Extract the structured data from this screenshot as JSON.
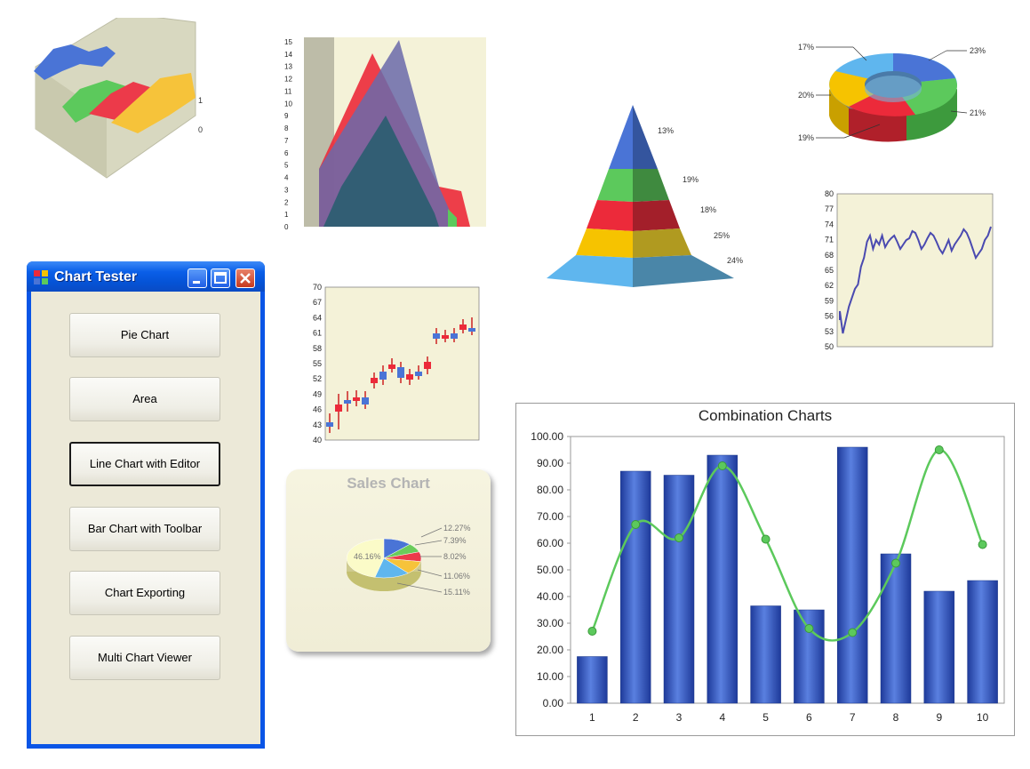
{
  "window": {
    "title": "Chart Tester",
    "buttons": [
      "Pie Chart",
      "Area",
      "Line Chart with Editor",
      "Bar Chart with Toolbar",
      "Chart Exporting",
      "Multi Chart Viewer"
    ],
    "focused_button": "Line Chart with Editor"
  },
  "thumbnails": {
    "surface_axis_labels": [
      "1",
      "0"
    ],
    "area_y_ticks": [
      "15",
      "14",
      "13",
      "12",
      "11",
      "10",
      "9",
      "8",
      "7",
      "6",
      "5",
      "4",
      "3",
      "2",
      "1",
      "0"
    ],
    "pyramid_labels": [
      "13%",
      "19%",
      "18%",
      "25%",
      "24%"
    ],
    "donut_labels": [
      "17%",
      "23%",
      "20%",
      "21%",
      "19%"
    ],
    "stock_y_ticks": [
      "80",
      "77",
      "74",
      "71",
      "68",
      "65",
      "62",
      "59",
      "56",
      "53",
      "50"
    ],
    "candle_y_ticks": [
      "70",
      "67",
      "64",
      "61",
      "58",
      "55",
      "52",
      "49",
      "46",
      "43",
      "40"
    ]
  },
  "sales_chart": {
    "title": "Sales Chart",
    "labels": [
      "46.16%",
      "12.27%",
      "7.39%",
      "8.02%",
      "11.06%",
      "15.11%"
    ],
    "values": [
      46.16,
      12.27,
      7.39,
      8.02,
      11.06,
      15.11
    ],
    "colors": [
      "#fbfbc8",
      "#4a74d6",
      "#6acb5a",
      "#ec3a4a",
      "#f6c33a",
      "#5fb6ee"
    ]
  },
  "chart_data": {
    "type": "bar",
    "title": "Combination Charts",
    "categories": [
      "1",
      "2",
      "3",
      "4",
      "5",
      "6",
      "7",
      "8",
      "9",
      "10"
    ],
    "series": [
      {
        "type": "bar",
        "values": [
          17.5,
          87.0,
          85.5,
          93.0,
          36.5,
          35.0,
          96.0,
          56.0,
          42.0,
          46.0
        ]
      },
      {
        "type": "spline",
        "values": [
          27.0,
          67.0,
          62.0,
          89.0,
          61.5,
          28.0,
          26.5,
          52.5,
          95.0,
          59.5
        ]
      }
    ],
    "ylim": [
      0,
      100
    ],
    "y_ticks": [
      "0.00",
      "10.00",
      "20.00",
      "30.00",
      "40.00",
      "50.00",
      "60.00",
      "70.00",
      "80.00",
      "90.00",
      "100.00"
    ],
    "bar_color": "#3a5fc8",
    "line_color": "#5cc95c",
    "grid": false
  }
}
